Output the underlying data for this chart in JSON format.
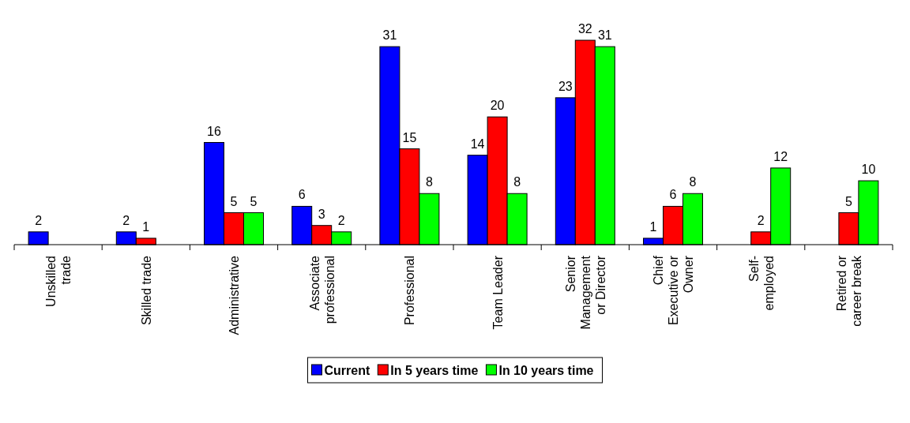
{
  "chart_data": {
    "type": "bar",
    "categories": [
      "Unskilled trade",
      "Skilled trade",
      "Administrative",
      "Associate professional",
      "Professional",
      "Team Leader",
      "Senior Management or Director",
      "Chief Executive or Owner",
      "Self-employed",
      "Retired or career break"
    ],
    "series": [
      {
        "name": "Current",
        "color": "#0000ff",
        "values": [
          2,
          2,
          16,
          6,
          31,
          14,
          23,
          1,
          null,
          null
        ]
      },
      {
        "name": "In 5 years time",
        "color": "#ff0000",
        "values": [
          null,
          1,
          5,
          3,
          15,
          20,
          32,
          6,
          2,
          5
        ]
      },
      {
        "name": "In 10 years time",
        "color": "#00ff00",
        "values": [
          null,
          null,
          5,
          2,
          8,
          8,
          31,
          8,
          12,
          10
        ]
      }
    ],
    "data_labels": true,
    "legend": "bottom"
  }
}
